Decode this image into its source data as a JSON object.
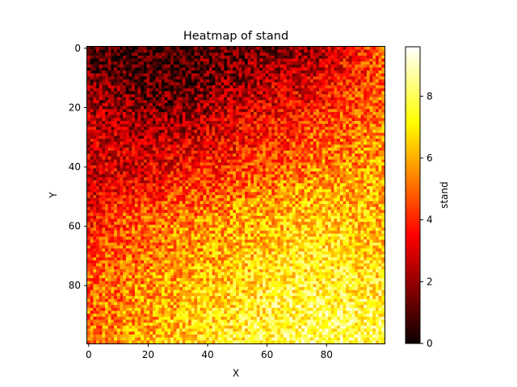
{
  "chart_data": {
    "type": "heatmap",
    "title": "Heatmap of stand",
    "xlabel": "X",
    "ylabel": "Y",
    "colorbar_label": "stand",
    "colormap": "hot",
    "colormap_stops": [
      "#0b0000",
      "#ff0000",
      "#ffff00",
      "#ffffff"
    ],
    "grid_shape": [
      100,
      100
    ],
    "xlim": [
      -0.5,
      99.5
    ],
    "ylim": [
      99.5,
      -0.5
    ],
    "x_ticks": [
      0,
      20,
      40,
      60,
      80
    ],
    "y_ticks": [
      0,
      20,
      40,
      60,
      80
    ],
    "value_range": [
      0,
      9.6
    ],
    "colorbar_ticks": [
      0,
      2,
      4,
      6,
      8
    ],
    "grid": false,
    "legend": "colorbar-right",
    "value_pattern": {
      "description_of_trend": "low values top-left, high values bottom-right, rising toward bottom",
      "coarse_means_rows_by_decile": [
        [
          0.8,
          0.6,
          0.5,
          0.6,
          1.0,
          1.4,
          1.6,
          1.9,
          3.4,
          5.0
        ],
        [
          1.6,
          1.1,
          0.9,
          1.1,
          1.6,
          2.2,
          2.8,
          3.2,
          4.0,
          4.6
        ],
        [
          2.4,
          2.0,
          1.6,
          1.8,
          2.6,
          3.1,
          3.6,
          4.0,
          4.6,
          5.1
        ],
        [
          2.8,
          2.6,
          2.6,
          3.0,
          3.4,
          3.9,
          4.3,
          4.8,
          5.2,
          5.6
        ],
        [
          2.6,
          3.0,
          3.4,
          4.0,
          4.3,
          4.8,
          5.2,
          5.6,
          5.9,
          6.0
        ],
        [
          3.2,
          4.4,
          4.8,
          5.0,
          5.4,
          5.9,
          6.2,
          6.5,
          6.4,
          6.1
        ],
        [
          4.3,
          4.8,
          5.2,
          5.6,
          6.0,
          6.4,
          6.8,
          7.0,
          6.8,
          6.4
        ],
        [
          4.7,
          5.2,
          5.6,
          6.0,
          6.4,
          6.8,
          7.2,
          7.4,
          7.2,
          7.0
        ],
        [
          5.0,
          5.4,
          5.9,
          6.4,
          6.9,
          7.3,
          7.6,
          7.8,
          7.7,
          7.5
        ],
        [
          5.2,
          5.7,
          6.2,
          6.7,
          7.1,
          7.5,
          7.8,
          8.0,
          8.0,
          7.8
        ]
      ]
    }
  }
}
